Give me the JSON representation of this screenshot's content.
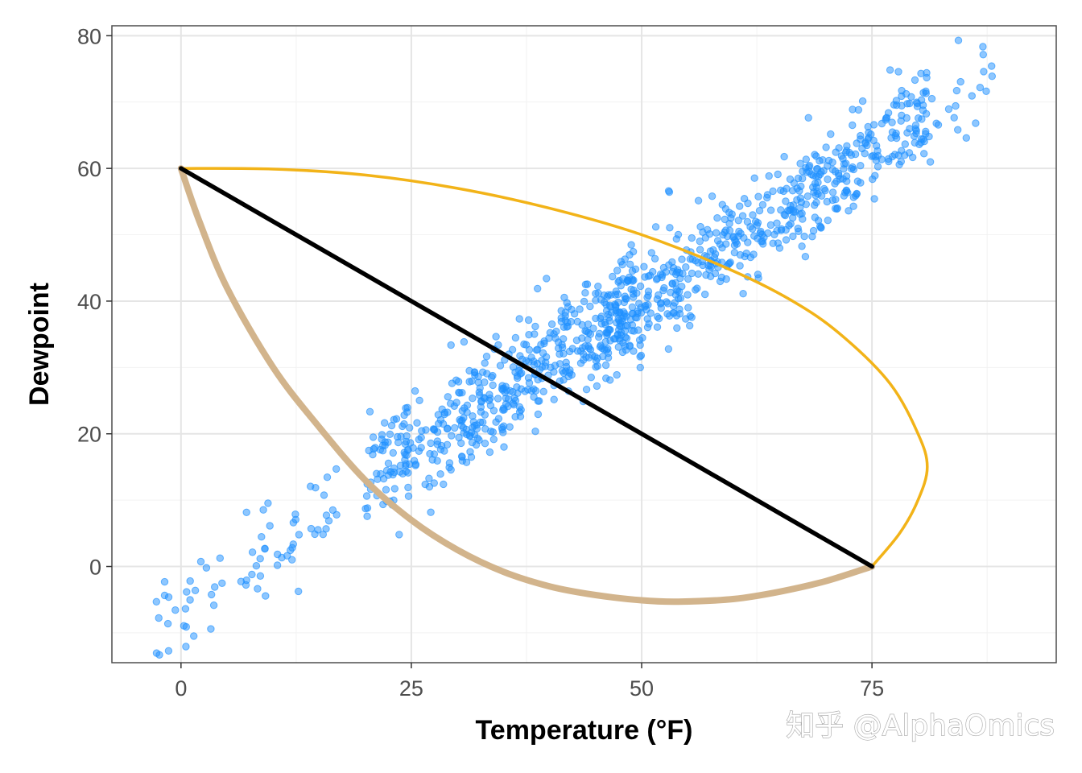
{
  "chart_data": {
    "type": "scatter",
    "xlabel": "Temperature (°F)",
    "ylabel": "Dewpoint",
    "xlim": [
      -7.5,
      95
    ],
    "ylim": [
      -14.5,
      81.5
    ],
    "x_ticks": [
      0,
      25,
      50,
      75
    ],
    "y_ticks": [
      0,
      20,
      40,
      60,
      80
    ],
    "grid": true,
    "colors": {
      "points": "#1e90ff",
      "straight_segment": "#000000",
      "upper_curve": "#f2b318",
      "lower_curve": "#d2b48c",
      "grid": "#e5e5e5",
      "panel_border": "#4d4d4d"
    },
    "segments": [
      {
        "kind": "straight",
        "from": [
          0,
          60
        ],
        "to": [
          75,
          0
        ]
      },
      {
        "kind": "curve-upper",
        "from": [
          0,
          60
        ],
        "to": [
          75,
          0
        ],
        "points": [
          [
            0,
            60
          ],
          [
            10,
            59.9
          ],
          [
            20,
            59.0
          ],
          [
            30,
            57.0
          ],
          [
            40,
            54.0
          ],
          [
            50,
            50.0
          ],
          [
            60,
            44.5
          ],
          [
            67,
            39.5
          ],
          [
            72,
            34.5
          ],
          [
            77,
            27.5
          ],
          [
            80,
            20.0
          ],
          [
            81,
            15.0
          ],
          [
            80,
            10.0
          ],
          [
            78,
            5.0
          ],
          [
            75,
            0
          ]
        ]
      },
      {
        "kind": "curve-lower",
        "from": [
          0,
          60
        ],
        "to": [
          75,
          0
        ],
        "points": [
          [
            0,
            60
          ],
          [
            2,
            52
          ],
          [
            5,
            42
          ],
          [
            10,
            30
          ],
          [
            15,
            21
          ],
          [
            20,
            13
          ],
          [
            25,
            7
          ],
          [
            30,
            2.5
          ],
          [
            35,
            -0.8
          ],
          [
            40,
            -3
          ],
          [
            45,
            -4.3
          ],
          [
            50,
            -5.1
          ],
          [
            54,
            -5.3
          ],
          [
            60,
            -4.9
          ],
          [
            65,
            -3.8
          ],
          [
            70,
            -2.2
          ],
          [
            75,
            0
          ]
        ]
      }
    ],
    "scatter": {
      "generator": "dense diagonal cloud; dewpoint rises roughly linearly with temperature",
      "n_points": 1100,
      "x_range": [
        -3,
        89
      ],
      "noise_sd": 4
    }
  },
  "watermark": "知乎 @AlphaOmics"
}
